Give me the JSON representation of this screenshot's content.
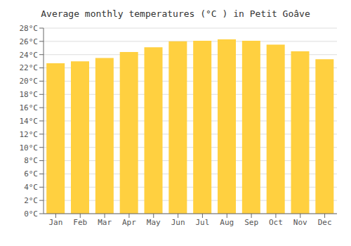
{
  "chart_data": {
    "type": "bar",
    "title": "Average monthly temperatures (°C ) in Petit Goâve",
    "categories": [
      "Jan",
      "Feb",
      "Mar",
      "Apr",
      "May",
      "Jun",
      "Jul",
      "Aug",
      "Sep",
      "Oct",
      "Nov",
      "Dec"
    ],
    "values": [
      22.7,
      23.0,
      23.5,
      24.4,
      25.1,
      26.0,
      26.1,
      26.3,
      26.1,
      25.5,
      24.5,
      23.3
    ],
    "color": "#FFD040",
    "ylim": [
      0,
      28
    ],
    "yticks": [
      {
        "value": 0,
        "label": "0°C"
      },
      {
        "value": 2,
        "label": "2°C"
      },
      {
        "value": 4,
        "label": "4°C"
      },
      {
        "value": 6,
        "label": "6°C"
      },
      {
        "value": 8,
        "label": "8°C"
      },
      {
        "value": 10,
        "label": "10°C"
      },
      {
        "value": 12,
        "label": "12°C"
      },
      {
        "value": 14,
        "label": "14°C"
      },
      {
        "value": 16,
        "label": "16°C"
      },
      {
        "value": 18,
        "label": "18°C"
      },
      {
        "value": 20,
        "label": "20°C"
      },
      {
        "value": 22,
        "label": "22°C"
      },
      {
        "value": 24,
        "label": "24°C"
      },
      {
        "value": 26,
        "label": "26°C"
      },
      {
        "value": 28,
        "label": "28°C"
      }
    ],
    "grid": true
  }
}
